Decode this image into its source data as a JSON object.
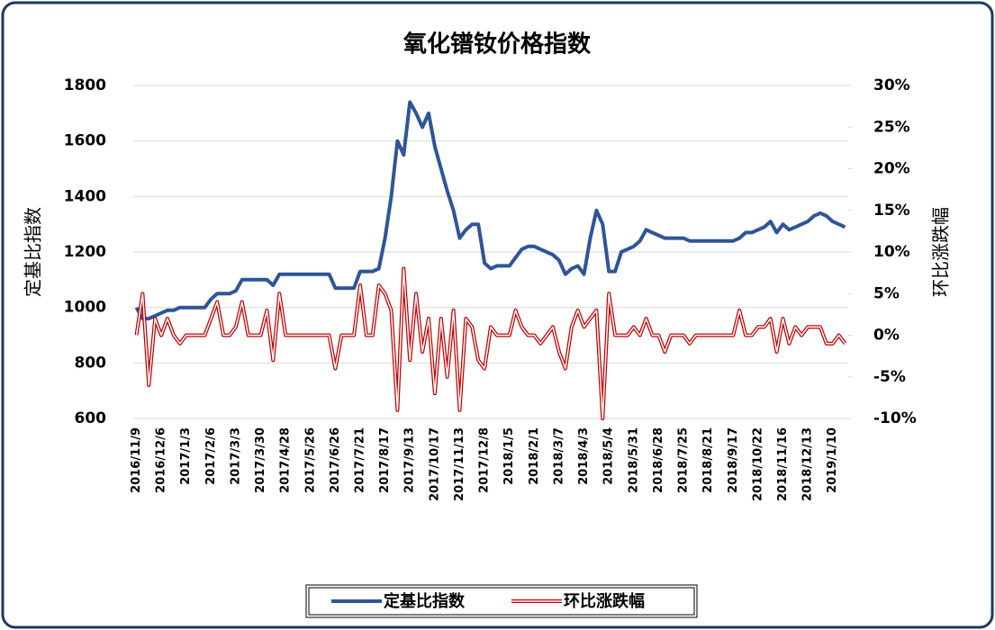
{
  "chart_data": {
    "type": "line",
    "title": "氧化镨钕价格指数",
    "y_label": "定基比指数",
    "y2_label": "环比涨跌幅",
    "categories": [
      "2016/11/9",
      null,
      null,
      null,
      "2016/12/6",
      null,
      null,
      null,
      "2017/1/3",
      null,
      null,
      null,
      "2017/2/6",
      null,
      null,
      null,
      "2017/3/3",
      null,
      null,
      null,
      "2017/3/30",
      null,
      null,
      null,
      "2017/4/28",
      null,
      null,
      null,
      "2017/5/26",
      null,
      null,
      null,
      "2017/6/26",
      null,
      null,
      null,
      "2017/7/21",
      null,
      null,
      null,
      "2017/8/17",
      null,
      null,
      null,
      "2017/9/13",
      null,
      null,
      null,
      "2017/10/17",
      null,
      null,
      null,
      "2017/11/13",
      null,
      null,
      null,
      "2017/12/8",
      null,
      null,
      null,
      "2018/1/5",
      null,
      null,
      null,
      "2018/2/1",
      null,
      null,
      null,
      "2018/3/7",
      null,
      null,
      null,
      "2018/4/3",
      null,
      null,
      null,
      "2018/5/4",
      null,
      null,
      null,
      "2018/5/31",
      null,
      null,
      null,
      "2018/6/28",
      null,
      null,
      null,
      "2018/7/25",
      null,
      null,
      null,
      "2018/8/21",
      null,
      null,
      null,
      "2018/9/17",
      null,
      null,
      null,
      "2018/10/22",
      null,
      null,
      null,
      "2018/11/16",
      null,
      null,
      null,
      "2018/12/13",
      null,
      null,
      null,
      "2019/1/10",
      null,
      null
    ],
    "series": [
      {
        "name": "定基比指数",
        "color": "#2e5597",
        "values": [
          1000,
          960,
          960,
          970,
          980,
          990,
          990,
          1000,
          1000,
          1000,
          1000,
          1000,
          1030,
          1050,
          1050,
          1050,
          1060,
          1100,
          1100,
          1100,
          1100,
          1100,
          1080,
          1120,
          1120,
          1120,
          1120,
          1120,
          1120,
          1120,
          1120,
          1120,
          1070,
          1070,
          1070,
          1070,
          1130,
          1130,
          1130,
          1140,
          1250,
          1400,
          1600,
          1550,
          1740,
          1700,
          1650,
          1700,
          1580,
          1500,
          1420,
          1350,
          1250,
          1280,
          1300,
          1300,
          1160,
          1140,
          1150,
          1150,
          1150,
          1180,
          1210,
          1220,
          1220,
          1210,
          1200,
          1190,
          1170,
          1120,
          1140,
          1150,
          1120,
          1250,
          1350,
          1300,
          1130,
          1130,
          1200,
          1210,
          1220,
          1240,
          1280,
          1270,
          1260,
          1250,
          1250,
          1250,
          1250,
          1240,
          1240,
          1240,
          1240,
          1240,
          1240,
          1240,
          1240,
          1250,
          1270,
          1270,
          1280,
          1290,
          1310,
          1270,
          1300,
          1280,
          1290,
          1300,
          1310,
          1330,
          1340,
          1330,
          1310,
          1300,
          1290
        ]
      },
      {
        "name": "环比涨跌幅",
        "color": "#c00000",
        "axis": "y2",
        "values": [
          0,
          5,
          -6,
          2,
          0,
          2,
          0,
          -1,
          0,
          0,
          0,
          0,
          2,
          4,
          0,
          0,
          1,
          4,
          0,
          0,
          0,
          3,
          -3,
          5,
          0,
          0,
          0,
          0,
          0,
          0,
          0,
          0,
          -4,
          0,
          0,
          0,
          6,
          0,
          0,
          6,
          5,
          3,
          -9,
          8,
          -3,
          5,
          -2,
          2,
          -7,
          2,
          -5,
          3,
          -9,
          2,
          1,
          -3,
          -4,
          1,
          0,
          0,
          0,
          3,
          1,
          0,
          0,
          -1,
          0,
          1,
          -2,
          -4,
          1,
          3,
          1,
          2,
          3,
          -10,
          5,
          0,
          0,
          0,
          1,
          0,
          2,
          0,
          0,
          -2,
          0,
          0,
          0,
          -1,
          0,
          0,
          0,
          0,
          0,
          0,
          0,
          3,
          0,
          0,
          1,
          1,
          2,
          -2,
          2,
          -1,
          1,
          0,
          1,
          1,
          1,
          -1,
          -1,
          0,
          -1
        ]
      }
    ],
    "ylim": [
      600,
      1800
    ],
    "yticks": [
      600,
      800,
      1000,
      1200,
      1400,
      1600,
      1800
    ],
    "y2lim": [
      -10,
      30
    ],
    "y2ticks": [
      {
        "value": -10,
        "label": "-10%"
      },
      {
        "value": -5,
        "label": "-5%"
      },
      {
        "value": 0,
        "label": "0%"
      },
      {
        "value": 5,
        "label": "5%"
      },
      {
        "value": 10,
        "label": "10%"
      },
      {
        "value": 15,
        "label": "15%"
      },
      {
        "value": 20,
        "label": "20%"
      },
      {
        "value": 25,
        "label": "25%"
      },
      {
        "value": 30,
        "label": "30%"
      }
    ],
    "grid": true,
    "legend": "bottom"
  }
}
